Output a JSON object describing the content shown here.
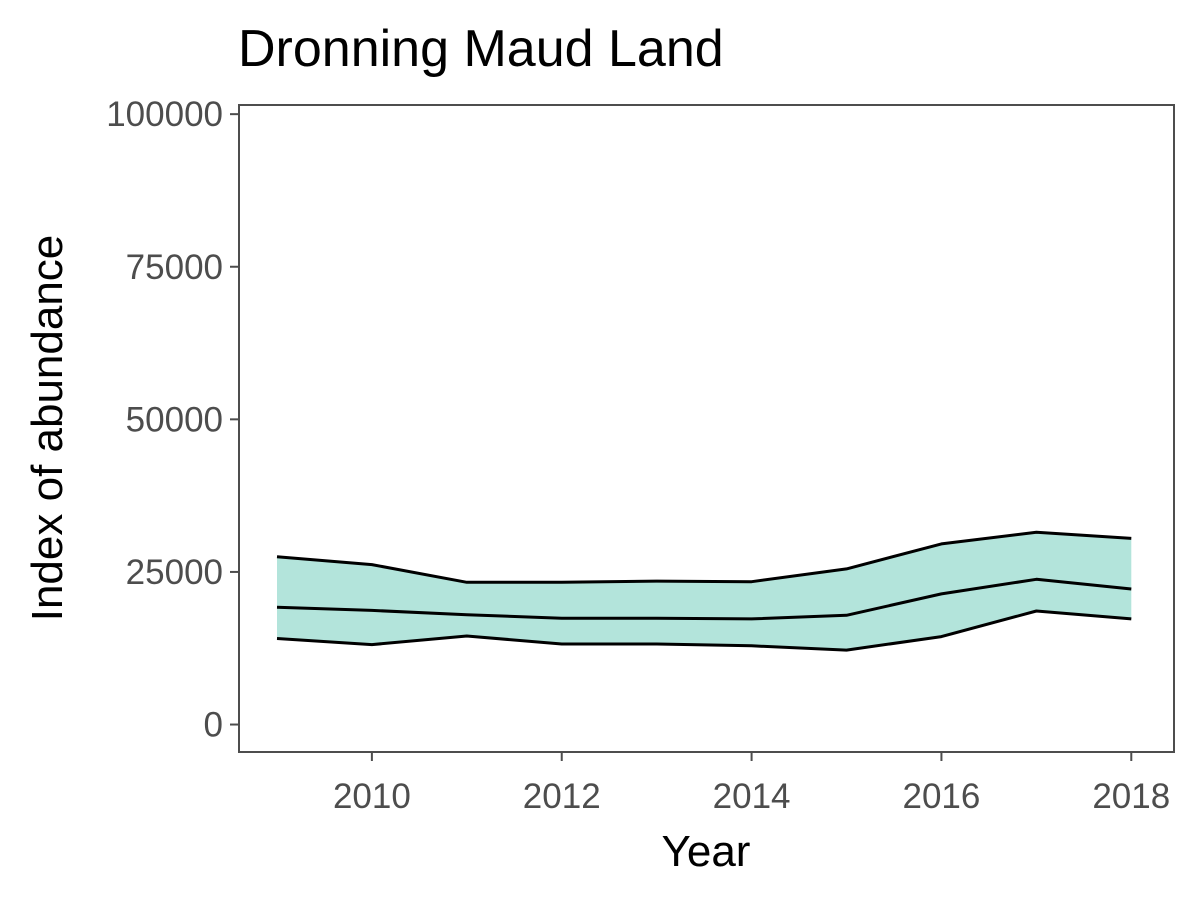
{
  "chart_data": {
    "type": "area",
    "title": "Dronning Maud Land",
    "xlabel": "Year",
    "ylabel": "Index of abundance",
    "xlim": [
      2008.6,
      2018.45
    ],
    "ylim": [
      -4500,
      101500
    ],
    "x_ticks": [
      2010,
      2012,
      2014,
      2016,
      2018
    ],
    "x_tick_labels": [
      "2010",
      "2012",
      "2014",
      "2016",
      "2018"
    ],
    "y_ticks": [
      0,
      25000,
      50000,
      75000,
      100000
    ],
    "y_tick_labels": [
      "0",
      "25000",
      "50000",
      "75000",
      "100000"
    ],
    "grid": false,
    "legend": "none",
    "x": [
      2009,
      2010,
      2011,
      2012,
      2013,
      2014,
      2015,
      2016,
      2017,
      2018
    ],
    "series": [
      {
        "role": "upper",
        "values": [
          27500,
          26200,
          23300,
          23300,
          23500,
          23400,
          25500,
          29600,
          31500,
          30500
        ]
      },
      {
        "role": "estimate",
        "values": [
          19200,
          18700,
          18000,
          17400,
          17400,
          17300,
          17900,
          21400,
          23800,
          22200
        ]
      },
      {
        "role": "lower",
        "values": [
          14100,
          13100,
          14500,
          13200,
          13200,
          12900,
          12200,
          14400,
          18600,
          17300
        ]
      }
    ],
    "colors": {
      "ribbon": "#b3e4db",
      "line": "#000000",
      "axis": "#4d4d4d",
      "tick_text": "#4d4d4d"
    }
  }
}
